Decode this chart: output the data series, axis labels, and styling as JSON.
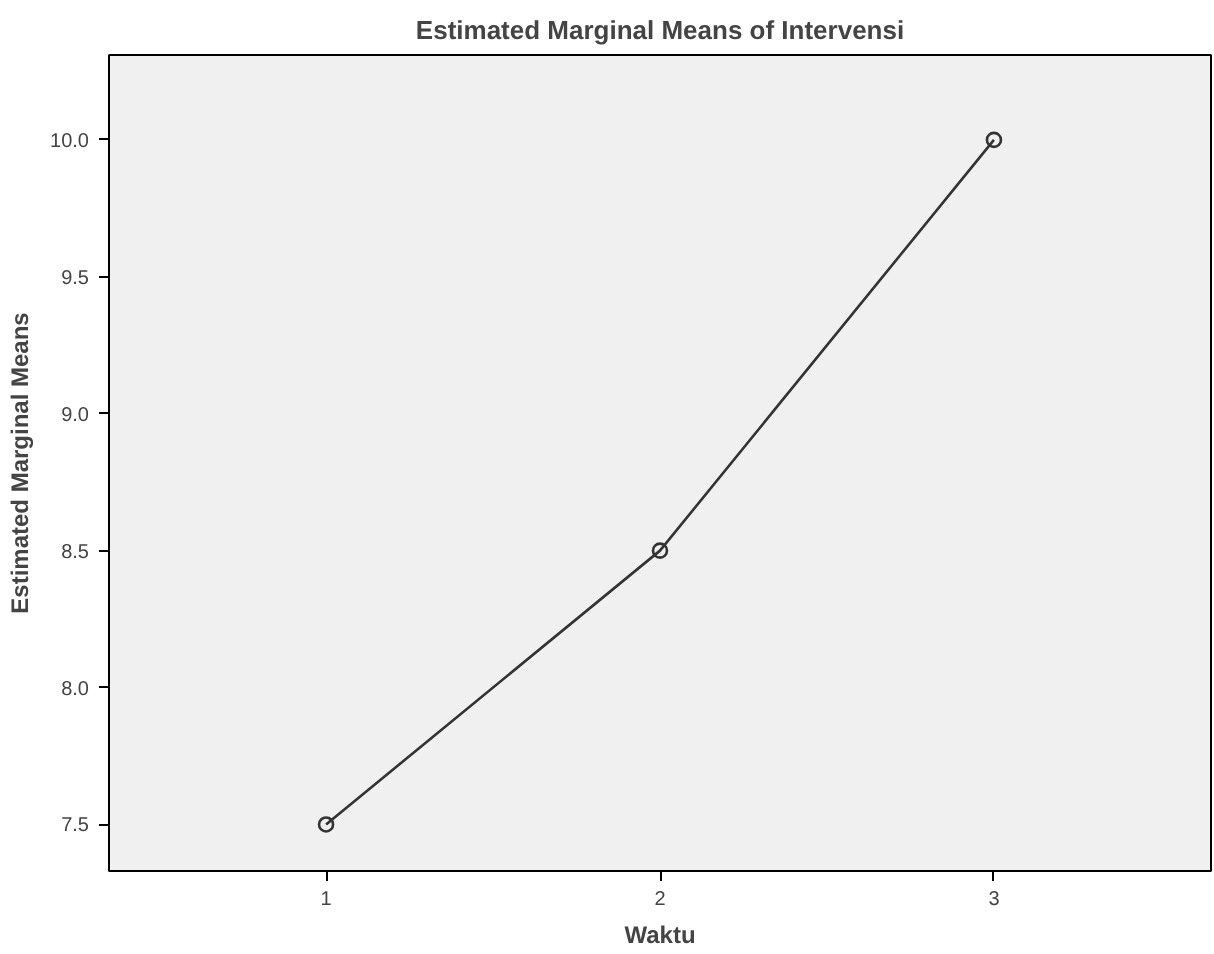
{
  "chart_data": {
    "type": "line",
    "title": "Estimated Marginal Means of Intervensi",
    "xlabel": "Waktu",
    "ylabel": "Estimated Marginal Means",
    "categories": [
      "1",
      "2",
      "3"
    ],
    "series": [
      {
        "color": "#333333",
        "values": [
          7.5,
          8.5,
          10.0
        ]
      }
    ],
    "ylim": [
      7.33,
      10.31
    ],
    "yticks": [
      {
        "value": 7.5,
        "label": "7.5"
      },
      {
        "value": 8.0,
        "label": "8.0"
      },
      {
        "value": 8.5,
        "label": "8.5"
      },
      {
        "value": 9.0,
        "label": "9.0"
      },
      {
        "value": 9.5,
        "label": "9.5"
      },
      {
        "value": 10.0,
        "label": "10.0"
      }
    ],
    "marker": "circle",
    "line_style": "solid"
  }
}
